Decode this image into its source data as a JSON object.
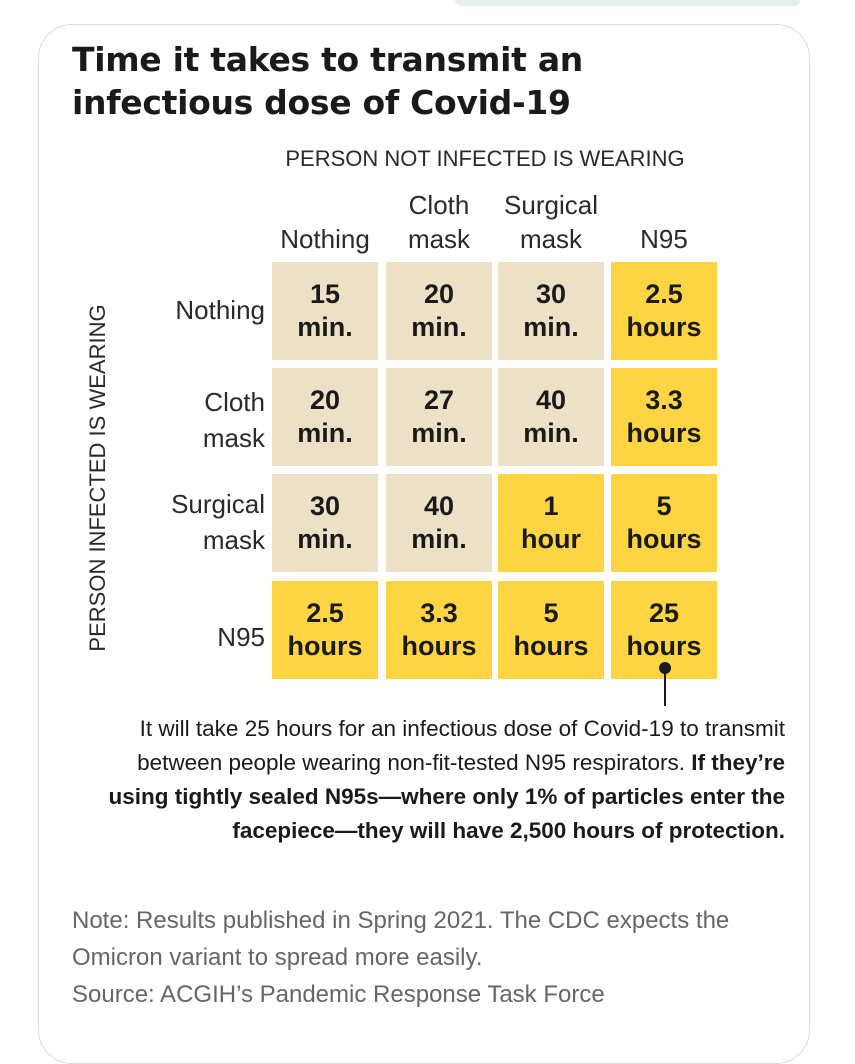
{
  "title": "Time it takes to transmit an infectious dose of Covid-19",
  "chart_data": {
    "type": "table",
    "title": "Time it takes to transmit an infectious dose of Covid-19",
    "column_axis_label": "PERSON NOT INFECTED IS WEARING",
    "row_axis_label": "PERSON INFECTED IS WEARING",
    "columns": [
      "Nothing",
      "Cloth mask",
      "Surgical mask",
      "N95"
    ],
    "rows": [
      "Nothing",
      "Cloth mask",
      "Surgical mask",
      "N95"
    ],
    "cells": [
      [
        {
          "value": "15",
          "unit": "min."
        },
        {
          "value": "20",
          "unit": "min."
        },
        {
          "value": "30",
          "unit": "min."
        },
        {
          "value": "2.5",
          "unit": "hours"
        }
      ],
      [
        {
          "value": "20",
          "unit": "min."
        },
        {
          "value": "27",
          "unit": "min."
        },
        {
          "value": "40",
          "unit": "min."
        },
        {
          "value": "3.3",
          "unit": "hours"
        }
      ],
      [
        {
          "value": "30",
          "unit": "min."
        },
        {
          "value": "40",
          "unit": "min."
        },
        {
          "value": "1",
          "unit": "hour"
        },
        {
          "value": "5",
          "unit": "hours"
        }
      ],
      [
        {
          "value": "2.5",
          "unit": "hours"
        },
        {
          "value": "3.3",
          "unit": "hours"
        },
        {
          "value": "5",
          "unit": "hours"
        },
        {
          "value": "25",
          "unit": "hours"
        }
      ]
    ],
    "colors": {
      "minutes": "#ece0c6",
      "hours": "#fdd542"
    }
  },
  "annotation": {
    "normal": "It will take 25 hours for an infectious dose of Covid-19 to transmit between people wearing non-fit-tested N95 respirators.",
    "bold": "If they’re using tightly sealed N95s—where only 1% of particles enter the facepiece—they will have 2,500 hours of protection."
  },
  "note": {
    "line1": "Note: Results published in Spring 2021. The CDC expects the Omicron variant to spread more easily.",
    "line2": "Source: ACGIH’s Pandemic Response Task Force"
  }
}
